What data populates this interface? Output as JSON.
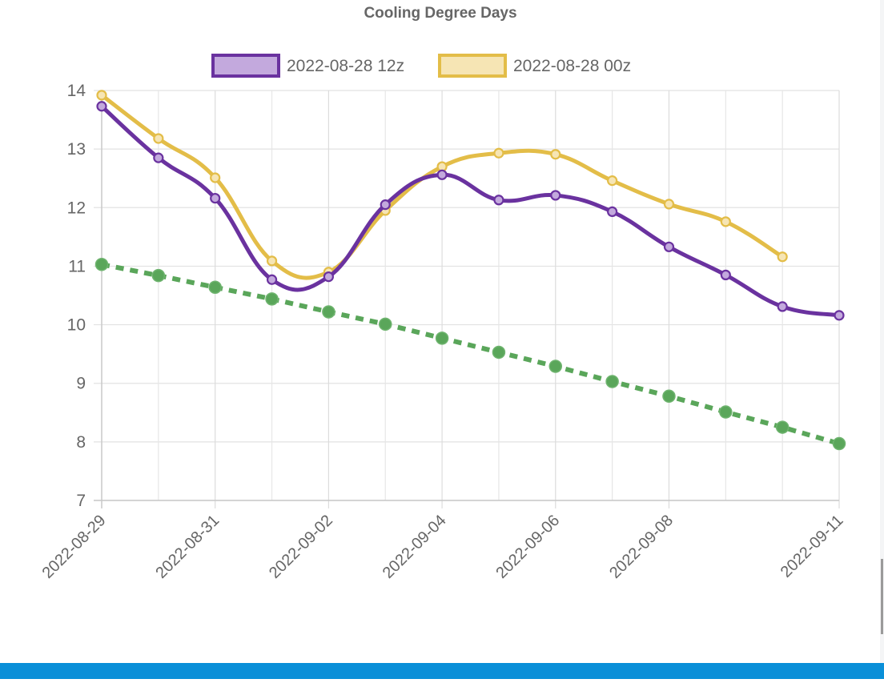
{
  "chart_data": {
    "type": "line",
    "title": "Cooling Degree Days",
    "xlabel": "",
    "ylabel": "",
    "ylim": [
      7,
      14
    ],
    "yticks": [
      "7",
      "8",
      "9",
      "10",
      "11",
      "12",
      "13",
      "14"
    ],
    "x": [
      "2022-08-29",
      "2022-08-30",
      "2022-08-31",
      "2022-09-01",
      "2022-09-02",
      "2022-09-03",
      "2022-09-04",
      "2022-09-05",
      "2022-09-06",
      "2022-09-07",
      "2022-09-08",
      "2022-09-09",
      "2022-09-10",
      "2022-09-11"
    ],
    "x_tick_labels": [
      "2022-08-29",
      "2022-08-31",
      "2022-09-02",
      "2022-09-04",
      "2022-09-06",
      "2022-09-08",
      "2022-09-11"
    ],
    "grid": true,
    "legend_position": "top",
    "series": [
      {
        "name": "2022-08-28 12z",
        "color": "#6a329f",
        "fill": "#c3a9dd",
        "style": "solid",
        "values": [
          13.73,
          12.85,
          12.16,
          10.77,
          10.82,
          12.05,
          12.56,
          12.13,
          12.21,
          11.93,
          11.33,
          10.85,
          10.31,
          10.16
        ]
      },
      {
        "name": "2022-08-28 00z",
        "color": "#e3bd48",
        "fill": "#f6e5b4",
        "style": "solid",
        "values": [
          13.92,
          13.18,
          12.51,
          11.09,
          10.9,
          11.95,
          12.7,
          12.93,
          12.91,
          12.46,
          12.06,
          11.76,
          11.16,
          null
        ]
      },
      {
        "color": "#5aa65a",
        "style": "dashed",
        "in_legend": false,
        "values": [
          11.03,
          10.84,
          10.64,
          10.44,
          10.22,
          10.01,
          9.77,
          9.53,
          9.29,
          9.03,
          8.78,
          8.51,
          8.25,
          7.97
        ]
      }
    ]
  }
}
